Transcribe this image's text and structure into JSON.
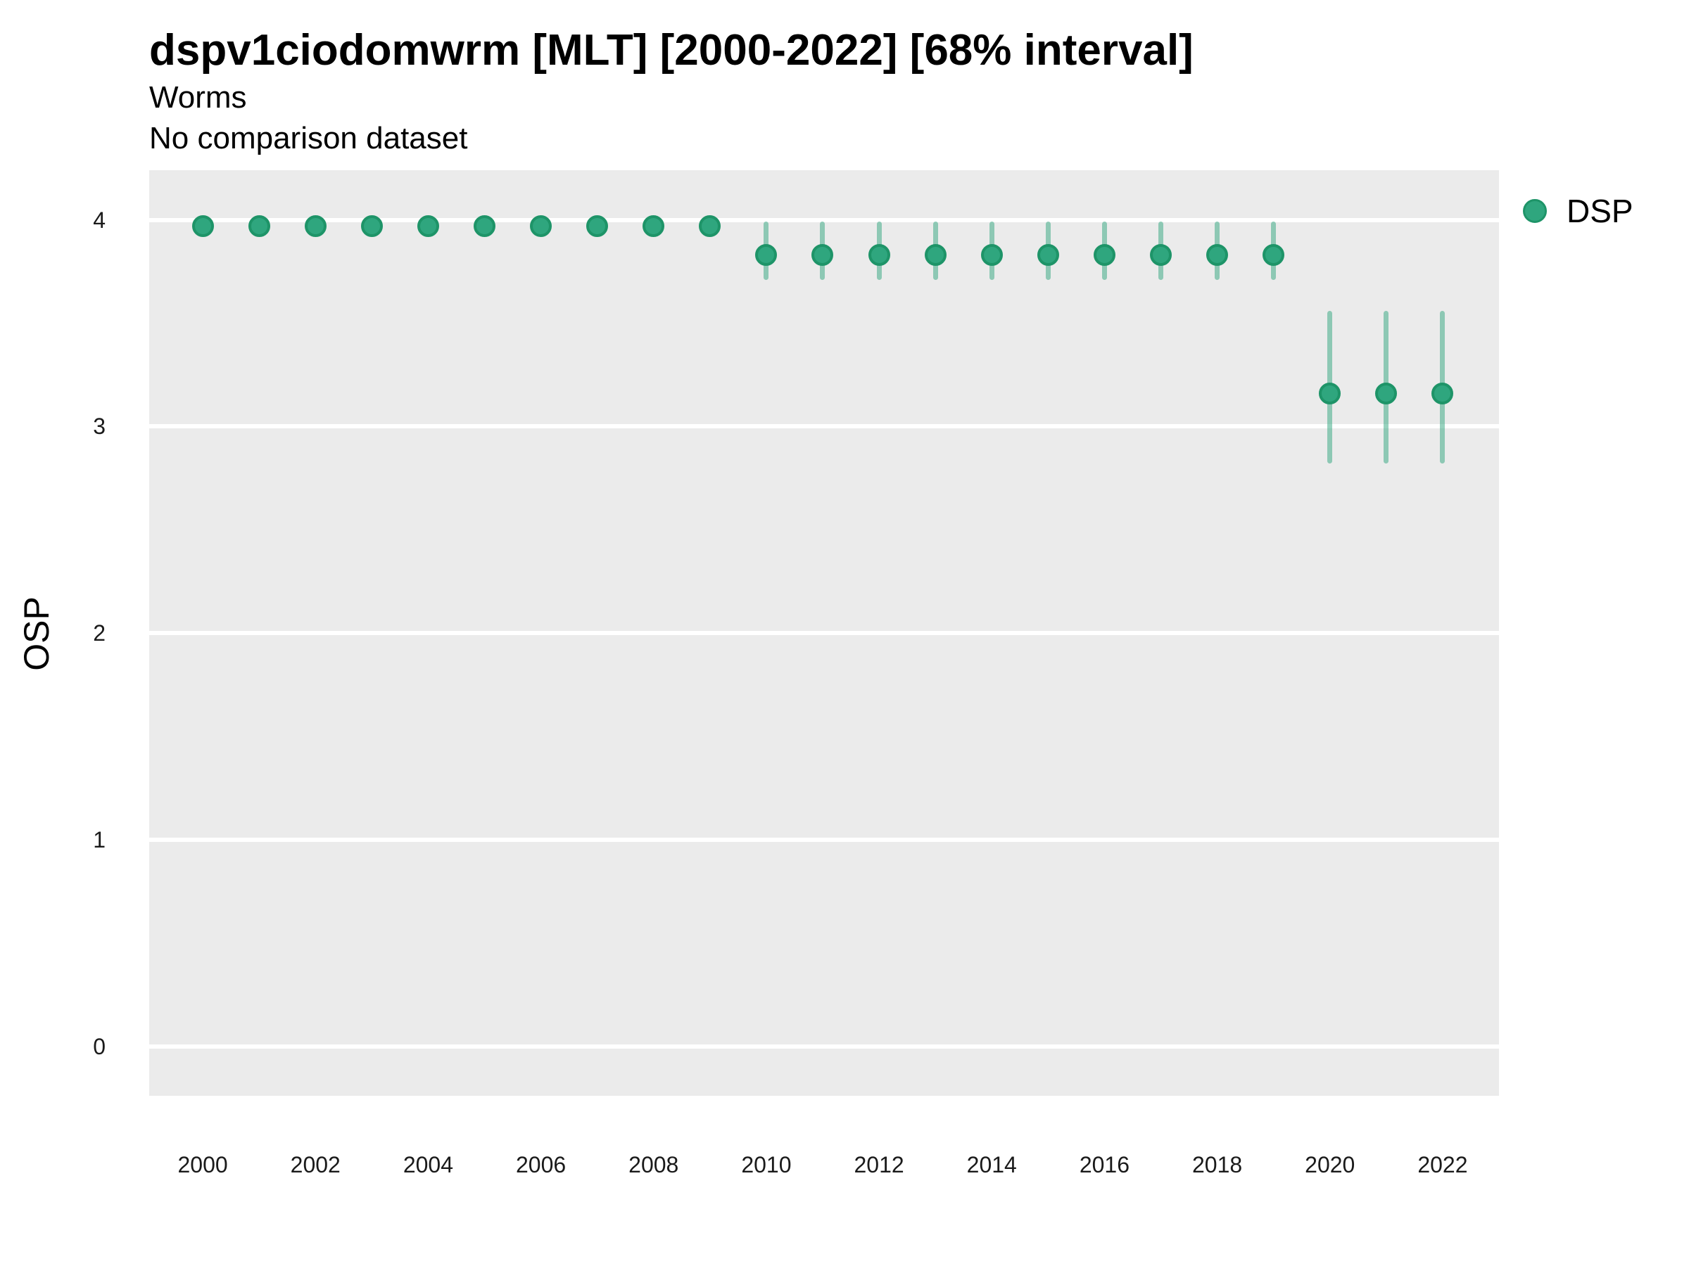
{
  "title": "dspv1ciodomwrm [MLT] [2000-2022] [68% interval]",
  "subtitle": "Worms",
  "note": "No comparison dataset",
  "y_axis_title": "OSP",
  "legend": {
    "position": "right-top",
    "items": [
      {
        "label": "DSP"
      }
    ]
  },
  "colors": {
    "point_fill": "#2FA67E",
    "point_border": "#1E9468",
    "interval_bar": "rgba(47,166,126,0.5)",
    "panel_background": "#EBEBEB",
    "gridline": "#FFFFFF",
    "text": "#000000",
    "tick_text": "#1a1a1a"
  },
  "chart_data": {
    "type": "scatter",
    "title": "dspv1ciodomwrm [MLT] [2000-2022] [68% interval]",
    "subtitle": "Worms",
    "annotation": "No comparison dataset",
    "xlabel": "",
    "ylabel": "OSP",
    "interval_level": "68%",
    "grid": "horizontal-major-only",
    "legend_position": "right-top",
    "xlim": [
      1999.05,
      2023.0
    ],
    "ylim": [
      -0.24,
      4.24
    ],
    "x_ticks": [
      2000,
      2002,
      2004,
      2006,
      2008,
      2010,
      2012,
      2014,
      2016,
      2018,
      2020,
      2022
    ],
    "y_ticks": [
      0,
      1,
      2,
      3,
      4
    ],
    "series": [
      {
        "name": "DSP",
        "x": [
          2000,
          2001,
          2002,
          2003,
          2004,
          2005,
          2006,
          2007,
          2008,
          2009,
          2010,
          2011,
          2012,
          2013,
          2014,
          2015,
          2016,
          2017,
          2018,
          2019,
          2020,
          2021,
          2022
        ],
        "y": [
          3.97,
          3.97,
          3.97,
          3.97,
          3.97,
          3.97,
          3.97,
          3.97,
          3.97,
          3.97,
          3.83,
          3.83,
          3.83,
          3.83,
          3.83,
          3.83,
          3.83,
          3.83,
          3.83,
          3.83,
          3.16,
          3.16,
          3.16
        ],
        "interval_low": [
          3.97,
          3.97,
          3.97,
          3.97,
          3.97,
          3.97,
          3.97,
          3.97,
          3.97,
          3.97,
          3.71,
          3.71,
          3.71,
          3.71,
          3.71,
          3.71,
          3.71,
          3.71,
          3.71,
          3.71,
          2.82,
          2.82,
          2.82
        ],
        "interval_high": [
          3.97,
          3.97,
          3.97,
          3.97,
          3.97,
          3.97,
          3.97,
          3.97,
          3.97,
          3.97,
          3.99,
          3.99,
          3.99,
          3.99,
          3.99,
          3.99,
          3.99,
          3.99,
          3.99,
          3.99,
          3.56,
          3.56,
          3.56
        ]
      }
    ]
  }
}
